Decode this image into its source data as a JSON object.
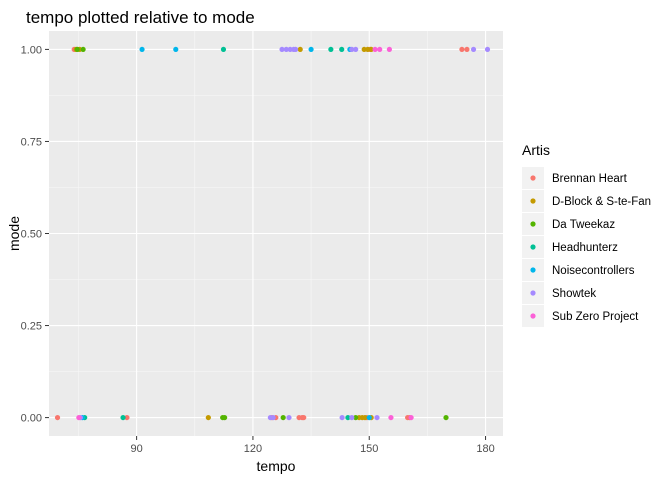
{
  "chart_data": {
    "type": "scatter",
    "title": "tempo plotted relative to mode",
    "xlabel": "tempo",
    "ylabel": "mode",
    "xlim": [
      67.4,
      184.5
    ],
    "ylim": [
      -0.05,
      1.05
    ],
    "x_ticks": [
      90,
      120,
      150,
      180
    ],
    "y_ticks": [
      0.0,
      0.25,
      0.5,
      0.75,
      1.0
    ],
    "y_tick_labels": [
      "0.00",
      "0.25",
      "0.50",
      "0.75",
      "1.00"
    ],
    "grid": true,
    "legend": {
      "title": "Artis",
      "placement": "right"
    },
    "series": [
      {
        "name": "Brennan Heart",
        "color": "#F8766D",
        "points": [
          [
            73.9,
            1
          ],
          [
            150.2,
            1
          ],
          [
            173.9,
            1
          ],
          [
            175.2,
            1
          ],
          [
            69.6,
            0
          ],
          [
            87.5,
            0
          ],
          [
            124.9,
            0
          ],
          [
            125.9,
            0
          ],
          [
            131.9,
            0
          ],
          [
            132.7,
            0
          ],
          [
            133.1,
            0
          ],
          [
            149.4,
            0
          ],
          [
            159.9,
            0
          ],
          [
            160.4,
            0
          ]
        ]
      },
      {
        "name": "D-Block & S-te-Fan",
        "color": "#C49A00",
        "points": [
          [
            74.4,
            1
          ],
          [
            75.3,
            1
          ],
          [
            132.2,
            1
          ],
          [
            148.7,
            1
          ],
          [
            149.6,
            1
          ],
          [
            150.5,
            1
          ],
          [
            108.5,
            0
          ],
          [
            147.4,
            0
          ],
          [
            148.2,
            0
          ],
          [
            148.9,
            0
          ],
          [
            150.5,
            0
          ]
        ]
      },
      {
        "name": "Da Tweekaz",
        "color": "#53B400",
        "points": [
          [
            74.7,
            1
          ],
          [
            76.2,
            1
          ],
          [
            112.2,
            0
          ],
          [
            112.7,
            0
          ],
          [
            127.8,
            0
          ],
          [
            146.5,
            0
          ],
          [
            169.8,
            0
          ]
        ]
      },
      {
        "name": "Headhunterz",
        "color": "#00C094",
        "points": [
          [
            112.4,
            1
          ],
          [
            140.1,
            1
          ],
          [
            142.9,
            1
          ],
          [
            76.6,
            0
          ],
          [
            86.5,
            0
          ],
          [
            144.5,
            0
          ]
        ]
      },
      {
        "name": "Noisecontrollers",
        "color": "#00B6EB",
        "points": [
          [
            91.4,
            1
          ],
          [
            100.1,
            1
          ],
          [
            135.0,
            1
          ],
          [
            145.0,
            1
          ],
          [
            76.0,
            0
          ],
          [
            150.0,
            0
          ]
        ]
      },
      {
        "name": "Showtek",
        "color": "#A58AFF",
        "points": [
          [
            127.5,
            1
          ],
          [
            128.6,
            1
          ],
          [
            129.6,
            1
          ],
          [
            130.5,
            1
          ],
          [
            131.0,
            1
          ],
          [
            145.5,
            1
          ],
          [
            146.5,
            1
          ],
          [
            176.9,
            1
          ],
          [
            180.5,
            1
          ],
          [
            75.5,
            0
          ],
          [
            124.5,
            0
          ],
          [
            125.2,
            0
          ],
          [
            129.3,
            0
          ],
          [
            143.0,
            0
          ],
          [
            145.5,
            0
          ],
          [
            152.0,
            0
          ]
        ]
      },
      {
        "name": "Sub Zero Project",
        "color": "#FB61D7",
        "points": [
          [
            151.5,
            1
          ],
          [
            152.7,
            1
          ],
          [
            155.2,
            1
          ],
          [
            75.1,
            0
          ],
          [
            155.6,
            0
          ],
          [
            160.8,
            0
          ]
        ]
      }
    ]
  }
}
